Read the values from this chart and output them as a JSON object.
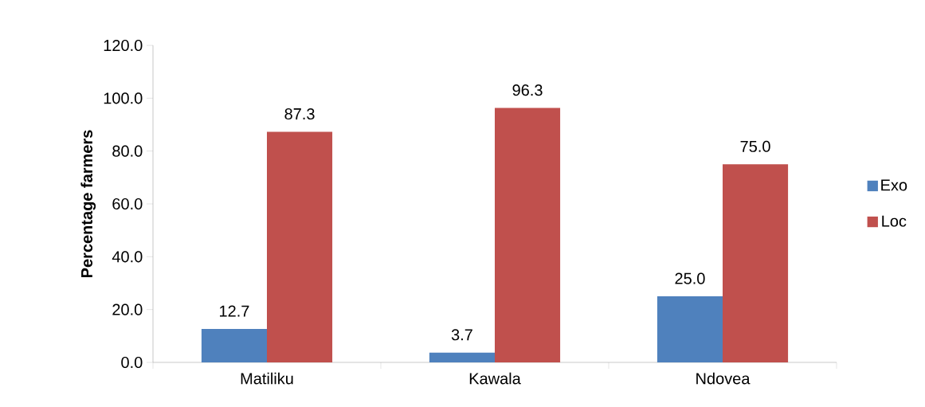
{
  "chart_data": {
    "type": "bar",
    "ylabel": "Percentage farmers",
    "categories": [
      "Matiliku",
      "Kawala",
      "Ndovea"
    ],
    "series": [
      {
        "name": "Exo",
        "color": "#4f81bd",
        "values": [
          12.7,
          3.7,
          25.0
        ],
        "value_labels": [
          "12.7",
          "3.7",
          "25.0"
        ]
      },
      {
        "name": "Loc",
        "color": "#c0504d",
        "values": [
          87.3,
          96.3,
          75.0
        ],
        "value_labels": [
          "87.3",
          "96.3",
          "75.0"
        ]
      }
    ],
    "ylim": [
      0,
      120
    ],
    "yticks": [
      {
        "value": 0,
        "label": "0.0"
      },
      {
        "value": 20,
        "label": "20.0"
      },
      {
        "value": 40,
        "label": "40.0"
      },
      {
        "value": 60,
        "label": "60.0"
      },
      {
        "value": 80,
        "label": "80.0"
      },
      {
        "value": 100,
        "label": "100.0"
      },
      {
        "value": 120,
        "label": "120.0"
      }
    ],
    "grid": false,
    "legend": "right"
  }
}
